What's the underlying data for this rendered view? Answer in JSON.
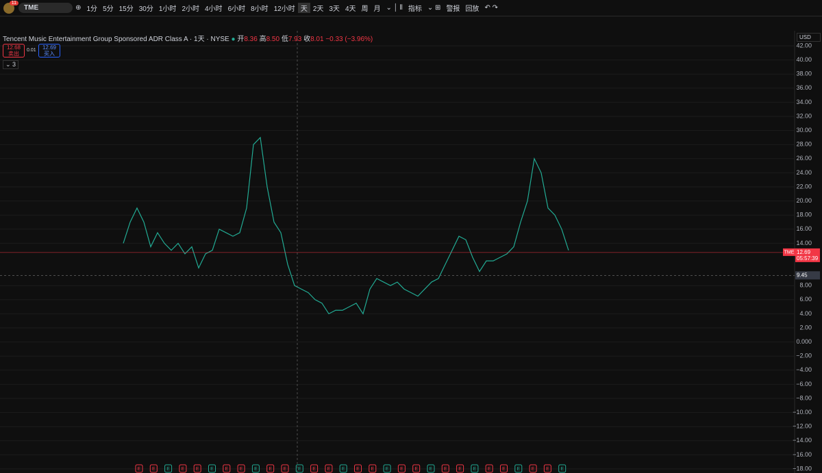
{
  "toolbar": {
    "badge": "11",
    "symbol": "TME",
    "intervals": [
      "1分",
      "5分",
      "15分",
      "30分",
      "1小时",
      "2小时",
      "4小时",
      "6小时",
      "8小时",
      "12小时",
      "天",
      "2天",
      "3天",
      "4天",
      "周",
      "月"
    ],
    "indicators": "指标",
    "alerts": "警报",
    "replay": "回放"
  },
  "legend": {
    "title": "Tencent Music Entertainment Group Sponsored ADR Class A · 1天 · NYSE",
    "open_label": "开",
    "open": "8.36",
    "high_label": "高",
    "high": "8.50",
    "low_label": "低",
    "low": "7.93",
    "close_label": "收",
    "close": "8.01",
    "change": "−0.33 (−3.96%)",
    "sell": "12.68",
    "sell_label": "卖出",
    "spread": "0.01",
    "buy": "12.69",
    "buy_label": "买入",
    "collapse": "3"
  },
  "price_axis": {
    "currency": "USD",
    "symbol_tag": "TME",
    "last_price": {
      "value": 12.69,
      "label": "12.69"
    },
    "countdown": "05:57:39",
    "crosshair": {
      "value": 9.45,
      "label": "9.45"
    }
  },
  "earnings": {
    "marker": "E",
    "count_label": [
      "E",
      "E",
      "E",
      "E",
      "E",
      "E",
      "E",
      "E",
      "E",
      "E",
      "E",
      "E",
      "E",
      "E",
      "E",
      "E",
      "E",
      "E",
      "E",
      "E",
      "E",
      "E",
      "E",
      "E",
      "E",
      "E",
      "E",
      "E",
      "E",
      "E"
    ]
  },
  "chart_data": {
    "type": "line",
    "color": "#22ab94",
    "grid": true,
    "values": [
      14,
      17,
      19,
      17,
      13.5,
      15.5,
      14,
      13,
      14,
      12.5,
      13.5,
      10.5,
      12.5,
      13,
      16,
      15.5,
      15,
      15.5,
      19,
      28,
      29,
      22,
      17,
      15.5,
      11,
      8,
      7.5,
      7,
      6,
      5.5,
      4,
      4.5,
      4.5,
      5,
      5.5,
      4,
      7.5,
      9,
      8.5,
      8,
      8.5,
      7.5,
      7,
      6.5,
      7.5,
      8.5,
      9,
      11,
      13,
      15,
      14.5,
      12,
      10,
      11.5,
      11.5,
      12,
      12.5,
      13.5,
      17,
      20,
      26,
      24,
      19,
      18,
      16,
      13
    ],
    "ylim": [
      -18,
      42
    ],
    "yticks": [
      {
        "value": 42,
        "label": "42.00"
      },
      {
        "value": 40,
        "label": "40.00"
      },
      {
        "value": 38,
        "label": "38.00"
      },
      {
        "value": 36,
        "label": "36.00"
      },
      {
        "value": 34,
        "label": "34.00"
      },
      {
        "value": 32,
        "label": "32.00"
      },
      {
        "value": 30,
        "label": "30.00"
      },
      {
        "value": 28,
        "label": "28.00"
      },
      {
        "value": 26,
        "label": "26.00"
      },
      {
        "value": 24,
        "label": "24.00"
      },
      {
        "value": 22,
        "label": "22.00"
      },
      {
        "value": 20,
        "label": "20.00"
      },
      {
        "value": 18,
        "label": "18.00"
      },
      {
        "value": 16,
        "label": "16.00"
      },
      {
        "value": 14,
        "label": "14.00"
      },
      {
        "value": 8,
        "label": "8.00"
      },
      {
        "value": 6,
        "label": "6.00"
      },
      {
        "value": 4,
        "label": "4.00"
      },
      {
        "value": 2,
        "label": "2.00"
      },
      {
        "value": 0,
        "label": "0.000"
      },
      {
        "value": -2,
        "label": "−2.00"
      },
      {
        "value": -4,
        "label": "−4.00"
      },
      {
        "value": -6,
        "label": "−6.00"
      },
      {
        "value": -8,
        "label": "−8.00"
      },
      {
        "value": -10,
        "label": "−10.00"
      },
      {
        "value": -12,
        "label": "−12.00"
      },
      {
        "value": -14,
        "label": "−14.00"
      },
      {
        "value": -16,
        "label": "−16.00"
      },
      {
        "value": -18,
        "label": "−18.00"
      }
    ]
  }
}
